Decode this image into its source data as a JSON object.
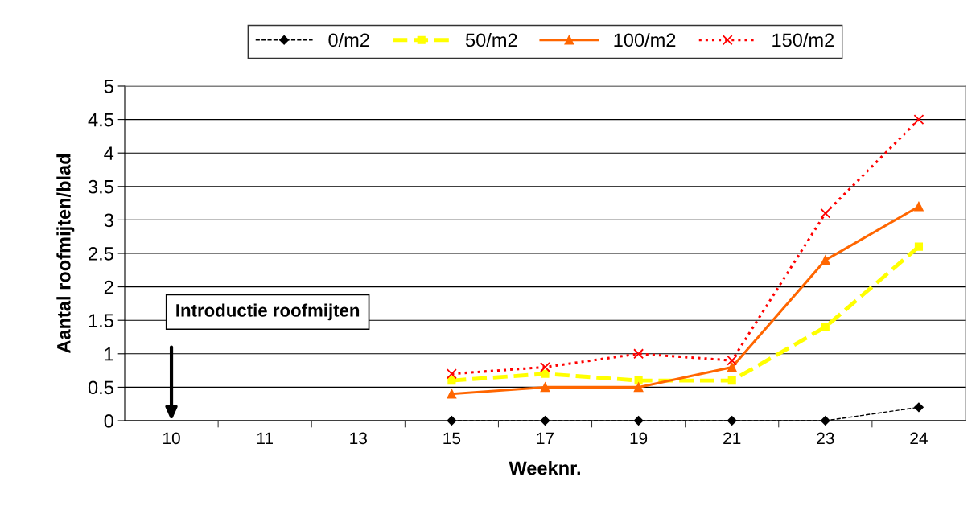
{
  "chart_data": {
    "type": "line",
    "xlabel": "Weeknr.",
    "ylabel": "Aantal roofmijten/blad",
    "categories": [
      "10",
      "11",
      "13",
      "15",
      "17",
      "19",
      "21",
      "23",
      "24"
    ],
    "series": [
      {
        "name": "0/m2",
        "color": "#000000",
        "marker": "diamond",
        "line_style": "dashed",
        "values": [
          null,
          null,
          null,
          0,
          0,
          0,
          0,
          0,
          0.2
        ]
      },
      {
        "name": "50/m2",
        "color": "#ffff00",
        "marker": "square",
        "line_style": "dashed",
        "values": [
          null,
          null,
          null,
          0.6,
          0.7,
          0.6,
          0.6,
          1.4,
          2.6
        ]
      },
      {
        "name": "100/m2",
        "color": "#ff6600",
        "marker": "triangle",
        "line_style": "solid",
        "values": [
          null,
          null,
          null,
          0.4,
          0.5,
          0.5,
          0.8,
          2.4,
          3.2
        ]
      },
      {
        "name": "150/m2",
        "color": "#ff0000",
        "marker": "cross",
        "line_style": "dotted",
        "values": [
          null,
          null,
          null,
          0.7,
          0.8,
          1.0,
          0.9,
          3.1,
          4.5
        ]
      }
    ],
    "ylim": [
      0,
      5
    ],
    "yticks": [
      0,
      0.5,
      1,
      1.5,
      2,
      2.5,
      3,
      3.5,
      4,
      4.5,
      5
    ],
    "grid": "y",
    "legend": "top",
    "annotations": [
      "Introductie roofmijten"
    ]
  }
}
